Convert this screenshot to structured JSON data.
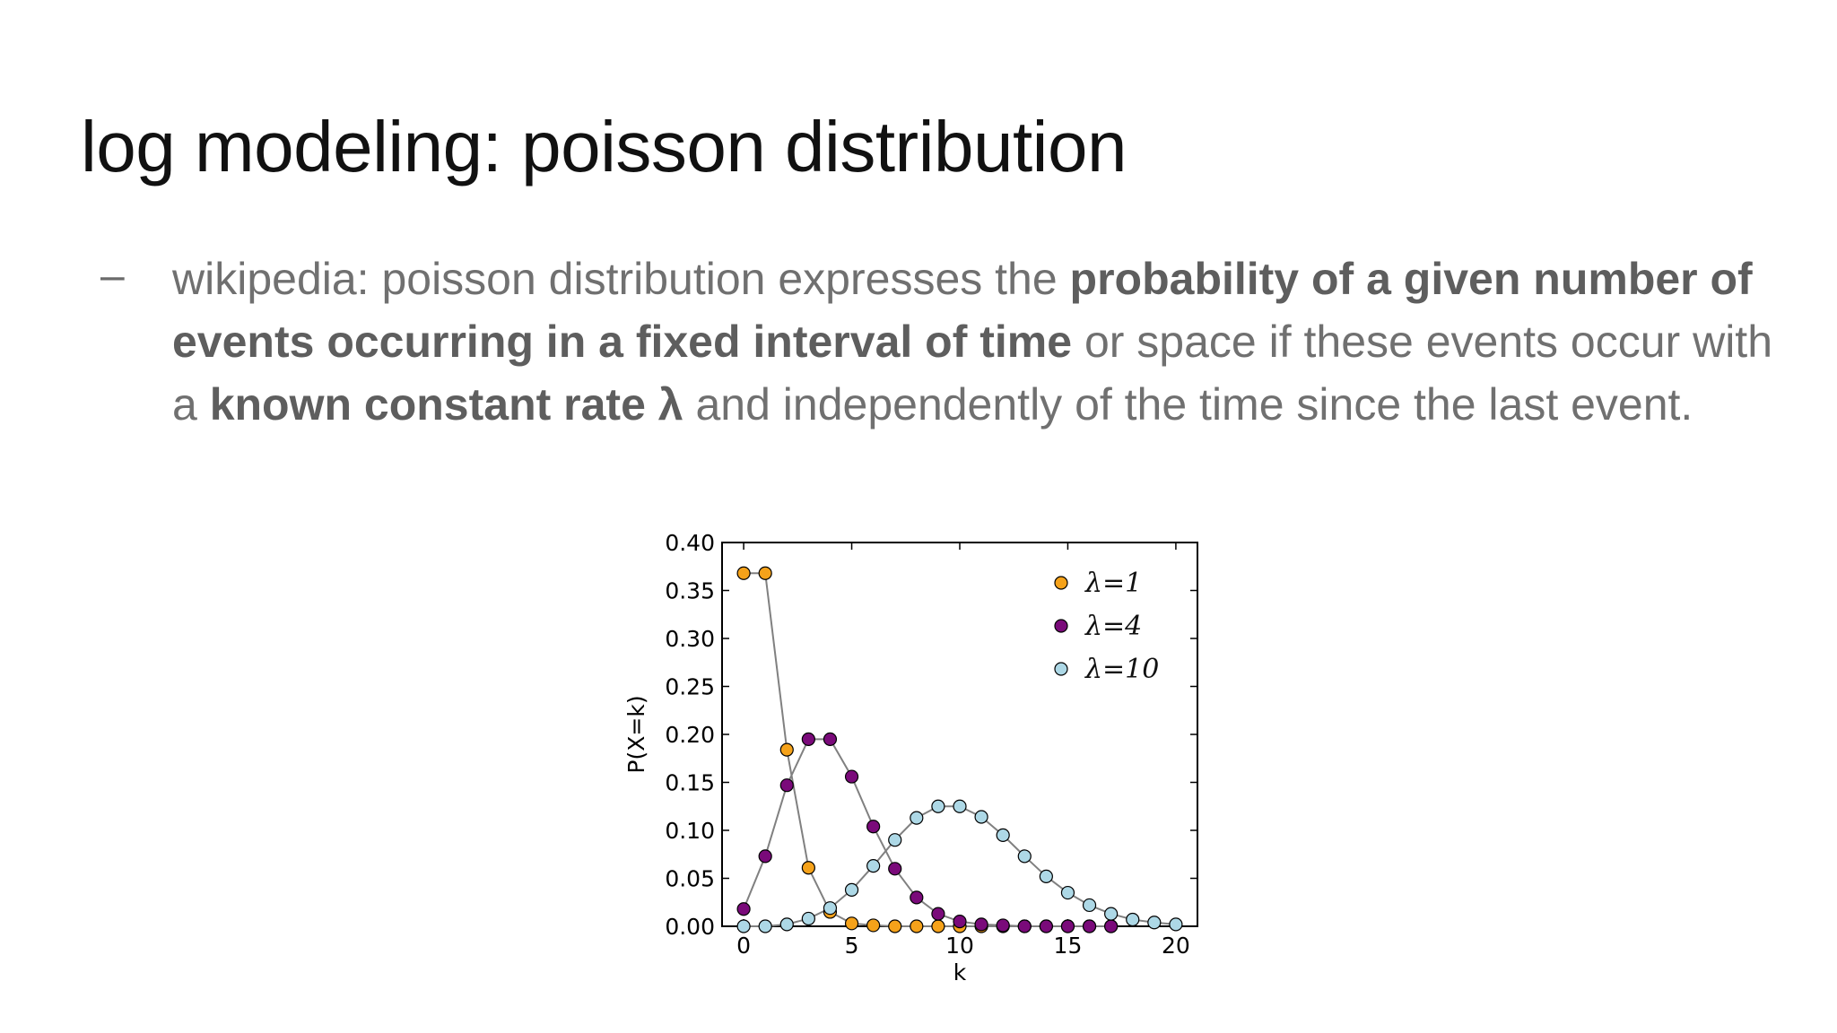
{
  "slide": {
    "title": "log modeling: poisson distribution",
    "bullet": {
      "dash": "–",
      "parts": [
        {
          "text": "wikipedia: poisson distribution expresses the ",
          "bold": false
        },
        {
          "text": "probability of a given number of events occurring in a fixed interval of time",
          "bold": true
        },
        {
          "text": " or space if these events occur with a ",
          "bold": false
        },
        {
          "text": "known constant rate λ",
          "bold": true
        },
        {
          "text": " and independently of the time since the last event.",
          "bold": false
        }
      ]
    }
  },
  "chart_data": {
    "type": "line",
    "title": "",
    "xlabel": "k",
    "ylabel": "P(X=k)",
    "xlim": [
      -1,
      21
    ],
    "ylim": [
      0,
      0.4
    ],
    "xticks": [
      0,
      5,
      10,
      15,
      20
    ],
    "yticks": [
      "0.00",
      "0.05",
      "0.10",
      "0.15",
      "0.20",
      "0.25",
      "0.30",
      "0.35",
      "0.40"
    ],
    "grid": false,
    "legend_position": "top-right",
    "series": [
      {
        "name": "λ=1",
        "color": "#f5a21a",
        "x": [
          0,
          1,
          2,
          3,
          4,
          5,
          6,
          7,
          8,
          9,
          10,
          11,
          12,
          13,
          14,
          15,
          16,
          17
        ],
        "values": [
          0.368,
          0.368,
          0.184,
          0.061,
          0.015,
          0.003,
          0.001,
          0,
          0,
          0,
          0,
          0,
          0,
          0,
          0,
          0,
          0,
          0
        ]
      },
      {
        "name": "λ=4",
        "color": "#7a0a7a",
        "x": [
          0,
          1,
          2,
          3,
          4,
          5,
          6,
          7,
          8,
          9,
          10,
          11,
          12,
          13,
          14,
          15,
          16,
          17
        ],
        "values": [
          0.018,
          0.073,
          0.147,
          0.195,
          0.195,
          0.156,
          0.104,
          0.06,
          0.03,
          0.013,
          0.005,
          0.002,
          0.001,
          0,
          0,
          0,
          0,
          0
        ]
      },
      {
        "name": "λ=10",
        "color": "#add8e6",
        "x": [
          0,
          1,
          2,
          3,
          4,
          5,
          6,
          7,
          8,
          9,
          10,
          11,
          12,
          13,
          14,
          15,
          16,
          17,
          18,
          19,
          20
        ],
        "values": [
          0,
          0,
          0.002,
          0.008,
          0.019,
          0.038,
          0.063,
          0.09,
          0.113,
          0.125,
          0.125,
          0.114,
          0.095,
          0.073,
          0.052,
          0.035,
          0.022,
          0.013,
          0.007,
          0.004,
          0.002
        ]
      }
    ]
  }
}
